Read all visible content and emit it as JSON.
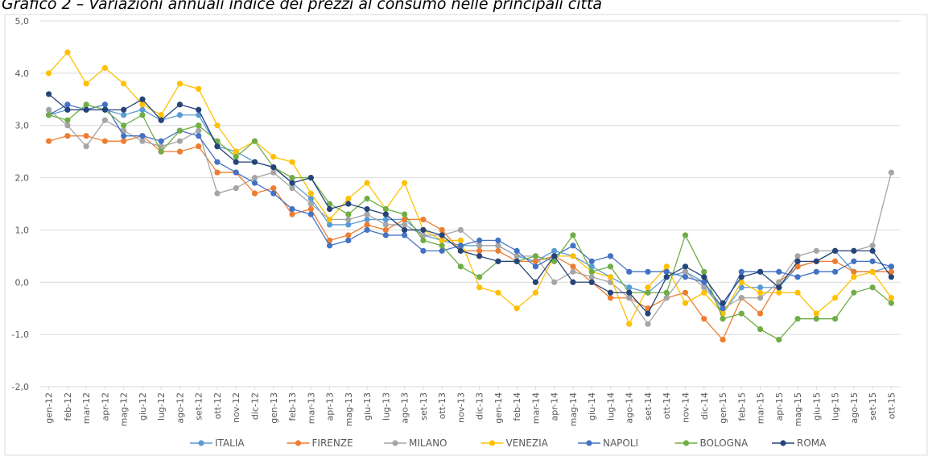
{
  "chart_data": {
    "type": "line",
    "title": "Grafico 2 – Variazioni annuali indice dei prezzi al consumo nelle principali città",
    "categories": [
      "gen-12",
      "feb-12",
      "mar-12",
      "apr-12",
      "mag-12",
      "giu-12",
      "lug-12",
      "ago-12",
      "set-12",
      "ott-12",
      "nov-12",
      "dic-12",
      "gen-13",
      "feb-13",
      "mar-13",
      "apr-13",
      "mag-13",
      "giu-13",
      "lug-13",
      "ago-13",
      "set-13",
      "ott-13",
      "nov-13",
      "dic-13",
      "gen-14",
      "feb-14",
      "mar-14",
      "apr-14",
      "mag-14",
      "giu-14",
      "lug-14",
      "ago-14",
      "set-14",
      "ott-14",
      "nov-14",
      "dic-14",
      "gen-15",
      "feb-15",
      "mar-15",
      "apr-15",
      "mag-15",
      "giu-15",
      "lug-15",
      "ago-15",
      "set-15",
      "ott-15"
    ],
    "series": [
      {
        "name": "ITALIA",
        "color": "#5b9bd5",
        "values": [
          3.2,
          3.3,
          3.3,
          3.3,
          3.2,
          3.3,
          3.1,
          3.2,
          3.2,
          2.6,
          2.5,
          2.3,
          2.2,
          1.9,
          1.6,
          1.1,
          1.1,
          1.2,
          1.2,
          1.2,
          0.9,
          0.8,
          0.7,
          0.7,
          0.7,
          0.5,
          0.4,
          0.6,
          0.5,
          0.3,
          0.1,
          -0.1,
          -0.2,
          0.1,
          0.2,
          0.0,
          -0.6,
          -0.1,
          -0.1,
          -0.1,
          0.3,
          0.4,
          0.6,
          0.2,
          0.2,
          0.3
        ]
      },
      {
        "name": "FIRENZE",
        "color": "#ed7d31",
        "values": [
          2.7,
          2.8,
          2.8,
          2.7,
          2.7,
          2.8,
          2.5,
          2.5,
          2.6,
          2.1,
          2.1,
          1.7,
          1.8,
          1.3,
          1.4,
          0.8,
          0.9,
          1.1,
          1.0,
          1.2,
          1.2,
          1.0,
          0.6,
          0.6,
          0.6,
          0.4,
          0.4,
          0.5,
          0.3,
          0.0,
          -0.3,
          -0.3,
          -0.5,
          -0.3,
          -0.2,
          -0.7,
          -1.1,
          -0.3,
          -0.6,
          0.0,
          0.3,
          0.4,
          0.4,
          0.2,
          0.2,
          0.2
        ]
      },
      {
        "name": "MILANO",
        "color": "#a5a5a5",
        "values": [
          3.3,
          3.0,
          2.6,
          3.1,
          2.9,
          2.7,
          2.6,
          2.7,
          2.9,
          1.7,
          1.8,
          2.0,
          2.1,
          1.8,
          1.5,
          1.2,
          1.2,
          1.3,
          1.1,
          1.1,
          0.9,
          0.9,
          1.0,
          0.7,
          0.7,
          0.5,
          0.5,
          0.0,
          0.2,
          0.1,
          0.0,
          -0.3,
          -0.8,
          -0.3,
          0.2,
          -0.1,
          -0.5,
          -0.3,
          -0.3,
          0.0,
          0.5,
          0.6,
          0.6,
          0.6,
          0.7,
          2.1
        ]
      },
      {
        "name": "VENEZIA",
        "color": "#ffc000",
        "values": [
          4.0,
          4.4,
          3.8,
          4.1,
          3.8,
          3.4,
          3.2,
          3.8,
          3.7,
          3.0,
          2.5,
          2.7,
          2.4,
          2.3,
          1.7,
          1.2,
          1.6,
          1.9,
          1.4,
          1.9,
          1.0,
          0.8,
          0.8,
          -0.1,
          -0.2,
          -0.5,
          -0.2,
          0.5,
          0.5,
          0.2,
          0.1,
          -0.8,
          -0.1,
          0.3,
          -0.4,
          -0.2,
          -0.6,
          0.0,
          -0.2,
          -0.2,
          -0.2,
          -0.6,
          -0.3,
          0.1,
          0.2,
          -0.3
        ]
      },
      {
        "name": "NAPOLI",
        "color": "#4472c4",
        "values": [
          3.2,
          3.4,
          3.3,
          3.4,
          2.8,
          2.8,
          2.7,
          2.9,
          2.8,
          2.3,
          2.1,
          1.9,
          1.7,
          1.4,
          1.3,
          0.7,
          0.8,
          1.0,
          0.9,
          0.9,
          0.6,
          0.6,
          0.7,
          0.8,
          0.8,
          0.6,
          0.3,
          0.5,
          0.7,
          0.4,
          0.5,
          0.2,
          0.2,
          0.2,
          0.1,
          0.0,
          -0.5,
          0.2,
          0.2,
          0.2,
          0.1,
          0.2,
          0.2,
          0.4,
          0.4,
          0.3
        ]
      },
      {
        "name": "BOLOGNA",
        "color": "#70ad47",
        "values": [
          3.2,
          3.1,
          3.4,
          3.3,
          3.0,
          3.2,
          2.5,
          2.9,
          3.0,
          2.7,
          2.4,
          2.7,
          2.2,
          2.0,
          2.0,
          1.5,
          1.3,
          1.6,
          1.4,
          1.3,
          0.8,
          0.7,
          0.3,
          0.1,
          0.4,
          0.4,
          0.5,
          0.4,
          0.9,
          0.2,
          0.3,
          -0.2,
          -0.2,
          -0.2,
          0.9,
          0.2,
          -0.7,
          -0.6,
          -0.9,
          -1.1,
          -0.7,
          -0.7,
          -0.7,
          -0.2,
          -0.1,
          -0.4
        ]
      },
      {
        "name": "ROMA",
        "color": "#264478",
        "values": [
          3.6,
          3.3,
          3.3,
          3.3,
          3.3,
          3.5,
          3.1,
          3.4,
          3.3,
          2.6,
          2.3,
          2.3,
          2.2,
          1.9,
          2.0,
          1.4,
          1.5,
          1.4,
          1.3,
          1.0,
          1.0,
          0.9,
          0.6,
          0.5,
          0.4,
          0.4,
          0.0,
          0.5,
          0.0,
          0.0,
          -0.2,
          -0.2,
          -0.6,
          0.1,
          0.3,
          0.1,
          -0.4,
          0.1,
          0.2,
          -0.1,
          0.4,
          0.4,
          0.6,
          0.6,
          0.6,
          0.1
        ]
      }
    ],
    "ylim": [
      -2,
      5
    ],
    "yticks": [
      {
        "value": -2,
        "label": "-2,0"
      },
      {
        "value": -1,
        "label": "-1,0"
      },
      {
        "value": 0,
        "label": "0,0"
      },
      {
        "value": 1,
        "label": "1,0"
      },
      {
        "value": 2,
        "label": "2,0"
      },
      {
        "value": 3,
        "label": "3,0"
      },
      {
        "value": 4,
        "label": "4,0"
      },
      {
        "value": 5,
        "label": "5,0"
      }
    ],
    "grid": true,
    "legend": "bottom"
  }
}
